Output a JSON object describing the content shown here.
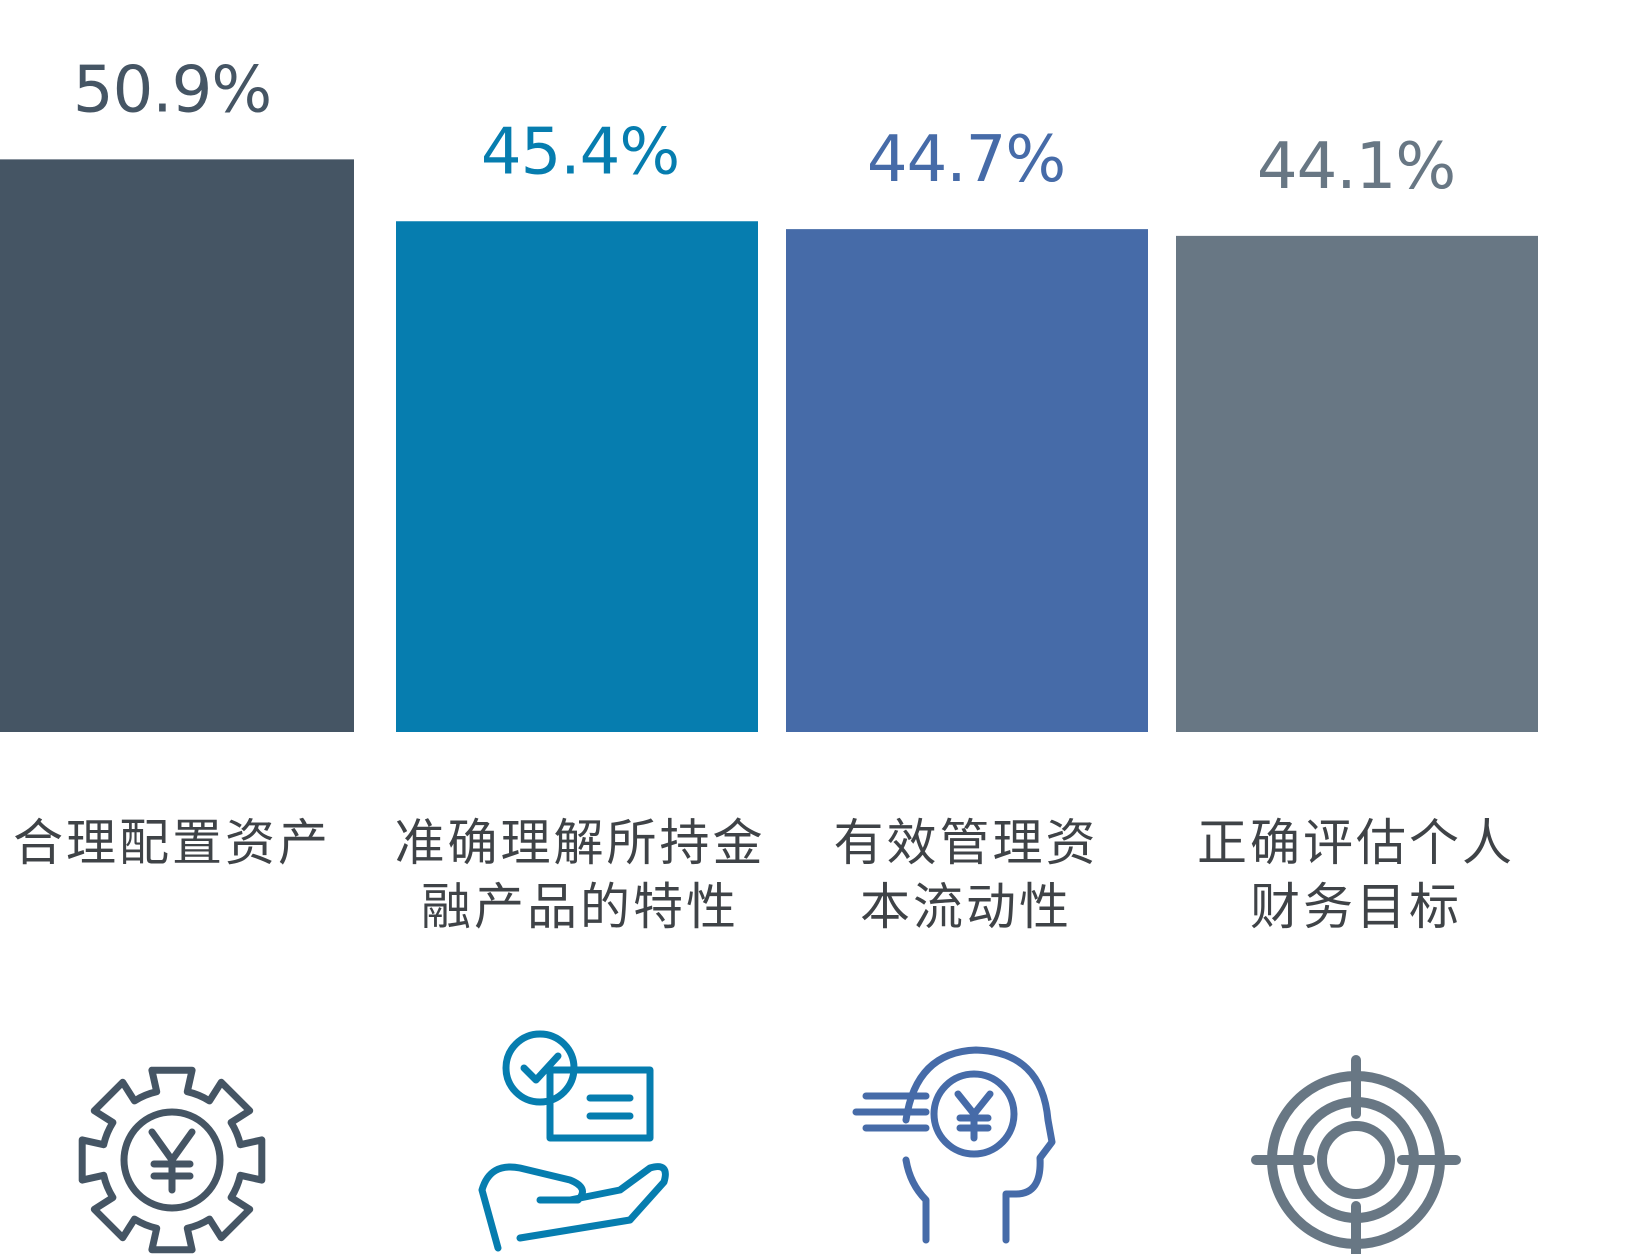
{
  "chart_data": {
    "type": "bar",
    "categories": [
      [
        "合理配置资产"
      ],
      [
        "准确理解所持金",
        "融产品的特性"
      ],
      [
        "有效管理资",
        "本流动性"
      ],
      [
        "正确评估个人",
        "财务目标"
      ]
    ],
    "values": [
      50.9,
      45.4,
      44.7,
      44.1
    ],
    "value_labels": [
      "50.9%",
      "45.4%",
      "44.7%",
      "44.1%"
    ],
    "bar_colors": [
      "#455564",
      "#067daf",
      "#466ba8",
      "#687784"
    ],
    "icons": [
      "gear-yen-icon",
      "hand-document-check-icon",
      "head-yen-icon",
      "target-icon"
    ],
    "grid": false,
    "legend": "none"
  }
}
